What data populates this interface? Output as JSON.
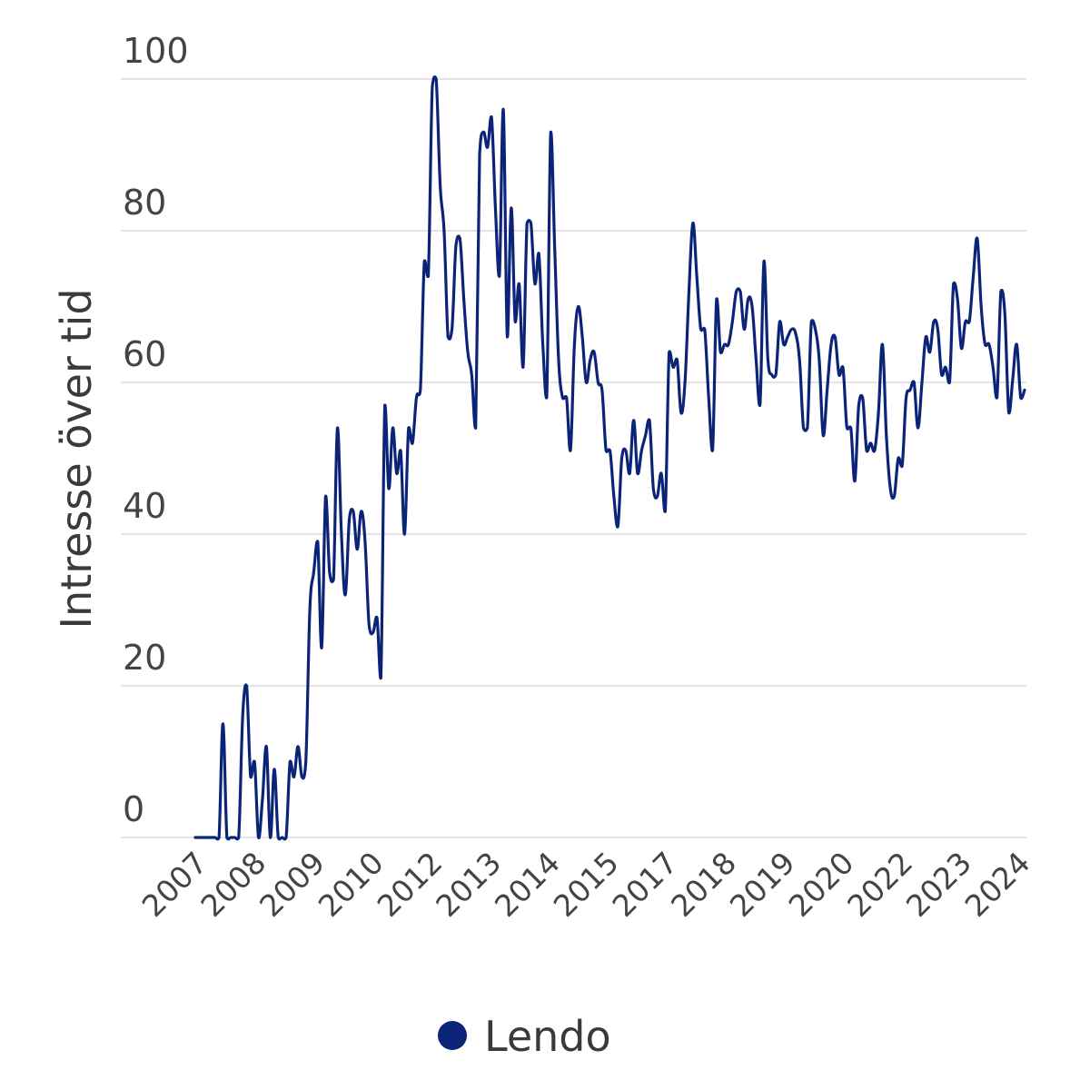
{
  "chart_data": {
    "type": "line",
    "title": "",
    "xlabel": "",
    "ylabel": "Intresse över tid",
    "ylim": [
      0,
      100
    ],
    "y_ticks": [
      "0",
      "20",
      "40",
      "60",
      "80",
      "100"
    ],
    "x_tick_labels": [
      "2007",
      "2008",
      "2009",
      "2010",
      "2012",
      "2013",
      "2014",
      "2015",
      "2017",
      "2018",
      "2019",
      "2020",
      "2022",
      "2023",
      "2024"
    ],
    "grid": true,
    "legend_position": "bottom",
    "x_start": "2007-01",
    "x_interval": "month",
    "series": [
      {
        "name": "Lendo",
        "color": "#0c2478",
        "values": [
          0,
          0,
          0,
          0,
          0,
          0,
          0,
          15,
          0,
          0,
          0,
          0,
          16,
          20,
          8,
          10,
          0,
          5,
          12,
          0,
          9,
          0,
          0,
          0,
          10,
          8,
          12,
          8,
          10,
          30,
          35,
          39,
          25,
          45,
          35,
          34,
          54,
          40,
          32,
          42,
          43,
          38,
          43,
          39,
          28,
          27,
          29,
          21,
          57,
          46,
          54,
          48,
          51,
          40,
          54,
          52,
          58,
          59,
          76,
          74,
          99,
          100,
          86,
          80,
          66,
          67,
          78,
          79,
          71,
          64,
          61,
          54,
          90,
          93,
          91,
          95,
          83,
          74,
          96,
          66,
          83,
          68,
          73,
          62,
          81,
          81,
          73,
          77,
          65,
          58,
          93,
          78,
          63,
          58,
          58,
          51,
          65,
          70,
          66,
          60,
          63,
          64,
          60,
          59,
          51,
          51,
          45,
          41,
          50,
          51,
          48,
          55,
          48,
          51,
          53,
          55,
          46,
          45,
          48,
          43,
          64,
          62,
          63,
          56,
          60,
          72,
          81,
          74,
          67,
          67,
          58,
          51,
          71,
          64,
          65,
          65,
          68,
          72,
          72,
          67,
          71,
          70,
          63,
          57,
          76,
          63,
          61,
          61,
          68,
          65,
          66,
          67,
          66.5,
          63,
          54,
          54,
          68,
          67,
          63,
          53,
          59,
          65,
          66,
          61,
          62,
          54,
          54,
          47,
          57,
          58,
          51,
          52,
          51,
          56,
          65,
          53,
          46,
          45,
          50,
          49,
          58,
          59,
          60,
          54,
          60,
          66,
          64,
          68,
          67,
          61,
          62,
          60,
          73,
          71,
          64.5,
          68,
          68,
          74,
          79,
          70,
          65,
          65,
          62,
          58,
          72,
          69,
          56,
          60.5,
          65,
          58,
          59
        ]
      }
    ]
  }
}
